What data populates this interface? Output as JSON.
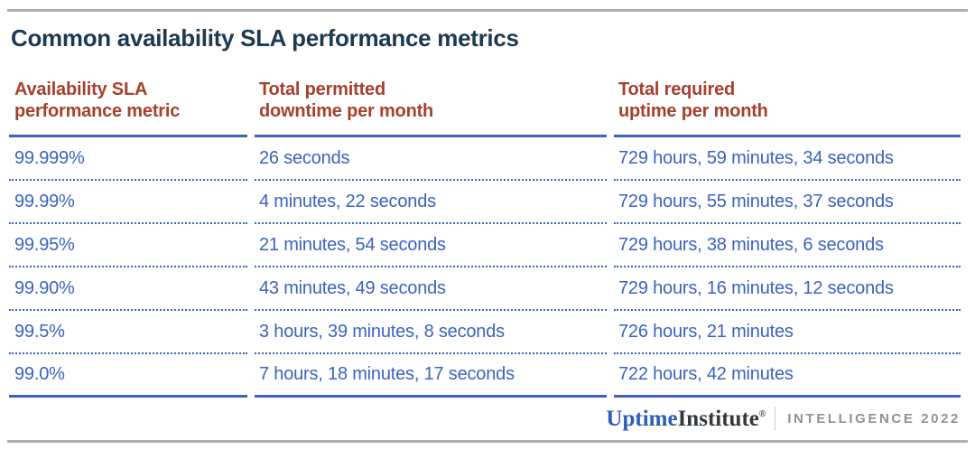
{
  "title": "Common availability SLA performance metrics",
  "table": {
    "headers": [
      {
        "line1": "Availability SLA",
        "line2": "performance metric"
      },
      {
        "line1": "Total permitted",
        "line2": "downtime per month"
      },
      {
        "line1": "Total required",
        "line2": "uptime per month"
      }
    ],
    "rows": [
      {
        "metric": "99.999%",
        "downtime": "26 seconds",
        "uptime": "729 hours, 59 minutes, 34 seconds"
      },
      {
        "metric": "99.99%",
        "downtime": "4 minutes, 22 seconds",
        "uptime": "729 hours, 55 minutes, 37 seconds"
      },
      {
        "metric": "99.95%",
        "downtime": "21 minutes, 54 seconds",
        "uptime": "729 hours, 38 minutes, 6 seconds"
      },
      {
        "metric": "99.90%",
        "downtime": "43 minutes, 49 seconds",
        "uptime": "729 hours, 16 minutes, 12 seconds"
      },
      {
        "metric": "99.5%",
        "downtime": "3 hours, 39 minutes, 8 seconds",
        "uptime": "726 hours, 21 minutes"
      },
      {
        "metric": "99.0%",
        "downtime": "7 hours, 18 minutes, 17 seconds",
        "uptime": "722 hours, 42 minutes"
      }
    ]
  },
  "footer": {
    "brand_primary": "Uptime",
    "brand_secondary": "Institute",
    "registered_mark": "®",
    "imprint": "INTELLIGENCE 2022"
  },
  "colors": {
    "title_navy": "#1b3a52",
    "header_red": "#a6402d",
    "body_blue": "#3a63c0",
    "rule_gray": "#a9b1b9",
    "logo_blue": "#2e5cb8",
    "logo_dark": "#33383c",
    "imprint_gray": "#8f9296"
  },
  "chart_data": {
    "type": "table",
    "title": "Common availability SLA performance metrics",
    "columns": [
      "Availability SLA performance metric",
      "Total permitted downtime per month",
      "Total required uptime per month"
    ],
    "rows": [
      [
        "99.999%",
        "26 seconds",
        "729 hours, 59 minutes, 34 seconds"
      ],
      [
        "99.99%",
        "4 minutes, 22 seconds",
        "729 hours, 55 minutes, 37 seconds"
      ],
      [
        "99.95%",
        "21 minutes, 54 seconds",
        "729 hours, 38 minutes, 6 seconds"
      ],
      [
        "99.90%",
        "43 minutes, 49 seconds",
        "729 hours, 16 minutes, 12 seconds"
      ],
      [
        "99.5%",
        "3 hours, 39 minutes, 8 seconds",
        "726 hours, 21 minutes"
      ],
      [
        "99.0%",
        "7 hours, 18 minutes, 17 seconds",
        "722 hours, 42 minutes"
      ]
    ],
    "source": "Uptime Institute Intelligence 2022"
  }
}
